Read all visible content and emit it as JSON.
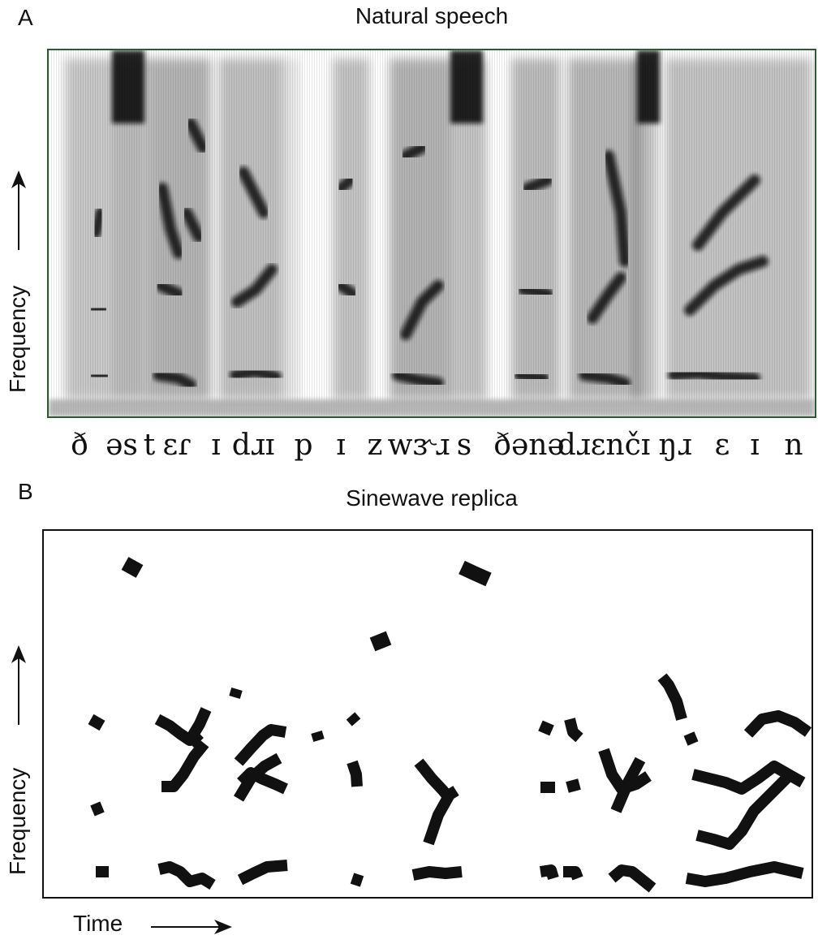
{
  "panel_a": {
    "letter": "A",
    "title": "Natural speech",
    "ylabel": "Frequency",
    "phonemes": [
      "ð",
      "əs",
      "t",
      "ɛɾ",
      "ɪ",
      "dɹɪ",
      "p",
      "ɪ",
      "z",
      "wɝɹ",
      "s",
      "ðənə",
      "dɹɛnčɪ",
      "ŋɹ",
      "ɛ",
      "ɪ",
      "n"
    ]
  },
  "panel_b": {
    "letter": "B",
    "title": "Sinewave replica",
    "ylabel": "Frequency",
    "xlabel": "Time"
  },
  "colors": {
    "spectrogram_frame": "#2f5a2f",
    "ink": "#111111"
  }
}
